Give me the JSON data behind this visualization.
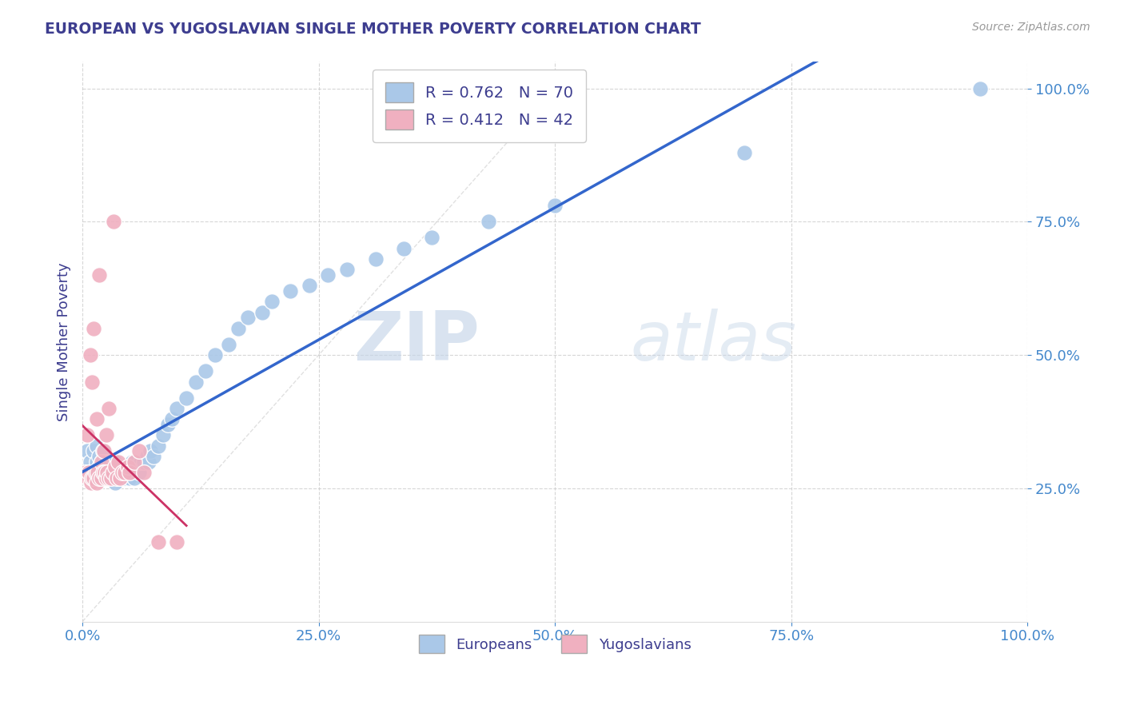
{
  "title": "EUROPEAN VS YUGOSLAVIAN SINGLE MOTHER POVERTY CORRELATION CHART",
  "source": "Source: ZipAtlas.com",
  "ylabel": "Single Mother Poverty",
  "xlim": [
    0,
    1
  ],
  "ylim": [
    0,
    1
  ],
  "xticks": [
    0,
    0.25,
    0.5,
    0.75,
    1.0
  ],
  "yticks": [
    0.25,
    0.5,
    0.75,
    1.0
  ],
  "xticklabels": [
    "0.0%",
    "25.0%",
    "50.0%",
    "75.0%",
    "100.0%"
  ],
  "yticklabels": [
    "25.0%",
    "50.0%",
    "75.0%",
    "100.0%"
  ],
  "european_color": "#aac8e8",
  "yugoslavian_color": "#f0b0c0",
  "regression_european_color": "#3366cc",
  "regression_yugoslavian_color": "#cc3366",
  "R_european": 0.762,
  "N_european": 70,
  "R_yugoslavian": 0.412,
  "N_yugoslavian": 42,
  "watermark_zip": "ZIP",
  "watermark_atlas": "atlas",
  "background_color": "#ffffff",
  "grid_color": "#cccccc",
  "title_color": "#3d3d8f",
  "ylabel_color": "#3d3d8f",
  "tick_label_color": "#4488cc",
  "european_x": [
    0.005,
    0.008,
    0.01,
    0.012,
    0.015,
    0.015,
    0.018,
    0.018,
    0.02,
    0.02,
    0.022,
    0.022,
    0.025,
    0.025,
    0.025,
    0.028,
    0.028,
    0.03,
    0.03,
    0.03,
    0.032,
    0.032,
    0.035,
    0.035,
    0.035,
    0.038,
    0.04,
    0.04,
    0.042,
    0.045,
    0.045,
    0.048,
    0.05,
    0.05,
    0.052,
    0.055,
    0.055,
    0.058,
    0.06,
    0.062,
    0.065,
    0.068,
    0.07,
    0.072,
    0.075,
    0.08,
    0.085,
    0.09,
    0.095,
    0.1,
    0.11,
    0.12,
    0.13,
    0.14,
    0.155,
    0.165,
    0.175,
    0.19,
    0.2,
    0.22,
    0.24,
    0.26,
    0.28,
    0.31,
    0.34,
    0.37,
    0.43,
    0.5,
    0.7,
    0.95
  ],
  "european_y": [
    0.32,
    0.3,
    0.28,
    0.32,
    0.3,
    0.33,
    0.29,
    0.31,
    0.28,
    0.3,
    0.3,
    0.32,
    0.27,
    0.28,
    0.3,
    0.28,
    0.3,
    0.27,
    0.28,
    0.3,
    0.27,
    0.29,
    0.26,
    0.28,
    0.3,
    0.27,
    0.27,
    0.29,
    0.28,
    0.27,
    0.29,
    0.28,
    0.27,
    0.29,
    0.3,
    0.27,
    0.3,
    0.29,
    0.28,
    0.3,
    0.3,
    0.31,
    0.3,
    0.32,
    0.31,
    0.33,
    0.35,
    0.37,
    0.38,
    0.4,
    0.42,
    0.45,
    0.47,
    0.5,
    0.52,
    0.55,
    0.57,
    0.58,
    0.6,
    0.62,
    0.63,
    0.65,
    0.66,
    0.68,
    0.7,
    0.72,
    0.75,
    0.78,
    0.88,
    1.0
  ],
  "yugoslavian_x": [
    0.003,
    0.005,
    0.006,
    0.007,
    0.008,
    0.009,
    0.01,
    0.01,
    0.012,
    0.012,
    0.014,
    0.015,
    0.015,
    0.016,
    0.018,
    0.018,
    0.02,
    0.02,
    0.022,
    0.023,
    0.024,
    0.025,
    0.025,
    0.026,
    0.028,
    0.028,
    0.03,
    0.032,
    0.033,
    0.035,
    0.036,
    0.038,
    0.04,
    0.042,
    0.045,
    0.048,
    0.05,
    0.055,
    0.06,
    0.065,
    0.08,
    0.1
  ],
  "yugoslavian_y": [
    0.28,
    0.35,
    0.27,
    0.28,
    0.5,
    0.26,
    0.27,
    0.45,
    0.27,
    0.55,
    0.28,
    0.26,
    0.38,
    0.28,
    0.27,
    0.65,
    0.27,
    0.3,
    0.28,
    0.32,
    0.28,
    0.27,
    0.35,
    0.28,
    0.27,
    0.4,
    0.27,
    0.28,
    0.75,
    0.29,
    0.27,
    0.3,
    0.27,
    0.28,
    0.28,
    0.29,
    0.28,
    0.3,
    0.32,
    0.28,
    0.15,
    0.15
  ]
}
